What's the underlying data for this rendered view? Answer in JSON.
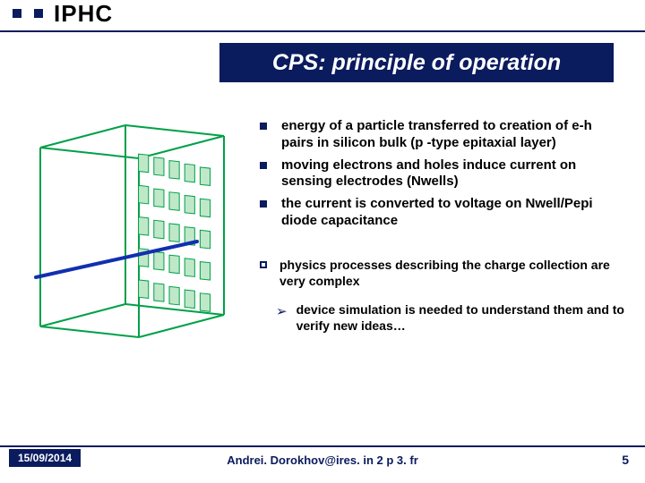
{
  "header": {
    "logo": "IPHC"
  },
  "title": "CPS: principle of operation",
  "bullets": [
    "energy of a particle transferred to creation of e-h pairs in silicon bulk (p -type epitaxial layer)",
    "moving electrons and holes induce current on sensing electrodes (Nwells)",
    "the current is converted to voltage on Nwell/Pepi diode capacitance"
  ],
  "sub_bullet": "physics processes describing the charge collection are very complex",
  "arrow_bullet": "device simulation is needed to understand them and to verify new ideas…",
  "footer": {
    "date": "15/09/2014",
    "email": "Andrei. Dorokhov@ires. in 2 p 3. fr",
    "page": "5"
  },
  "diagram": {
    "cube_stroke": "#00a048",
    "grid_fill": "#bfe8c8",
    "grid_stroke": "#00a048",
    "track_color": "#1030b0",
    "cols": 5,
    "rows": 5
  }
}
